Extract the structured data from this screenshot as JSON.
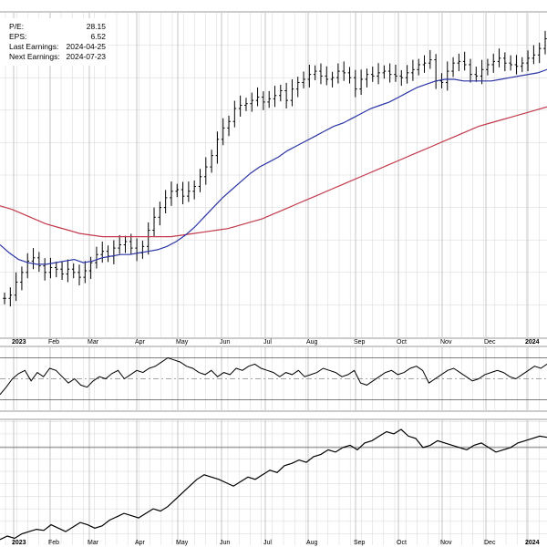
{
  "fundamentals": {
    "pe_label": "P/E:",
    "pe_value": "28.15",
    "eps_label": "EPS:",
    "eps_value": "6.52",
    "last_earnings_label": "Last Earnings:",
    "last_earnings_value": "2024-04-25",
    "next_earnings_label": "Next Earnings:",
    "next_earnings_value": "2024-07-23"
  },
  "colors": {
    "price_bars": "#000000",
    "ma_short": "#2b35a5",
    "ma_long": "#c23a4c",
    "indicator_line": "#000000",
    "indicator_fill": "#4f8a4f",
    "grid": "#d6d6d6",
    "band_line": "#555555",
    "midline": "#888888"
  },
  "chart_data": [
    {
      "type": "ohlc",
      "x_labels": [
        "2023",
        "Feb",
        "Mar",
        "Apr",
        "May",
        "Jun",
        "Jul",
        "Aug",
        "Sep",
        "Oct",
        "Nov",
        "Dec",
        "2024"
      ],
      "series": [
        {
          "key": "price",
          "values": [
            12.0,
            13.0,
            17.0,
            20.0,
            23.5,
            24.5,
            22.0,
            20.0,
            21.5,
            21.0,
            19.5,
            21.0,
            20.0,
            18.5,
            20.5,
            23.0,
            25.5,
            26.5,
            25.0,
            27.5,
            28.5,
            29.5,
            27.5,
            26.0,
            28.0,
            33.0,
            37.0,
            40.0,
            43.0,
            45.0,
            45.5,
            43.5,
            45.0,
            46.5,
            49.5,
            52.5,
            56.0,
            61.0,
            64.5,
            66.5,
            70.5,
            71.5,
            72.0,
            73.0,
            74.0,
            72.5,
            73.5,
            74.5,
            76.0,
            73.0,
            76.5,
            78.5,
            79.5,
            81.0,
            82.0,
            80.5,
            79.5,
            80.0,
            82.0,
            81.5,
            80.0,
            76.5,
            79.5,
            81.0,
            80.5,
            81.5,
            82.0,
            81.0,
            80.5,
            80.0,
            81.5,
            82.5,
            84.0,
            84.5,
            85.5,
            79.0,
            78.5,
            82.0,
            84.5,
            85.0,
            84.0,
            81.0,
            80.5,
            82.5,
            84.0,
            85.0,
            86.0,
            84.5,
            84.0,
            83.5,
            84.5,
            86.0,
            87.0,
            89.0,
            92.0
          ]
        },
        {
          "key": "ma_short",
          "values": [
            28.5,
            26.0,
            24.0,
            23.0,
            22.5,
            22.5,
            23.0,
            23.5,
            24.0,
            23.0,
            23.5,
            24.5,
            25.0,
            25.5,
            25.5,
            26.0,
            26.5,
            27.0,
            28.0,
            29.5,
            31.5,
            34.0,
            37.0,
            40.0,
            43.0,
            45.5,
            48.0,
            50.5,
            52.5,
            54.0,
            55.5,
            57.5,
            59.0,
            60.5,
            62.0,
            63.5,
            65.0,
            66.0,
            67.5,
            69.0,
            70.5,
            71.5,
            72.5,
            74.0,
            75.5,
            77.0,
            78.0,
            79.0,
            79.5,
            79.5,
            79.0,
            79.0,
            79.0,
            79.0,
            79.5,
            80.0,
            80.5,
            81.0,
            81.5,
            82.5
          ]
        },
        {
          "key": "ma_long",
          "values": [
            40.5,
            39.5,
            38.0,
            36.5,
            35.0,
            34.0,
            33.0,
            32.0,
            31.5,
            31.0,
            31.0,
            31.0,
            31.0,
            31.0,
            31.0,
            31.0,
            31.5,
            32.0,
            32.5,
            33.0,
            33.5,
            34.5,
            35.5,
            36.5,
            38.0,
            39.5,
            41.0,
            42.5,
            44.0,
            45.5,
            47.0,
            48.5,
            50.0,
            51.5,
            53.0,
            54.5,
            56.0,
            57.5,
            59.0,
            60.5,
            62.0,
            63.5,
            65.0,
            66.0,
            67.0,
            68.0,
            69.0,
            70.0,
            71.0
          ]
        }
      ]
    },
    {
      "type": "line",
      "series": [
        {
          "key": "oscillator",
          "values": [
            35,
            42,
            50,
            55,
            58,
            48,
            56,
            52,
            60,
            58,
            52,
            46,
            50,
            44,
            42,
            48,
            52,
            50,
            55,
            58,
            50,
            54,
            58,
            56,
            60,
            62,
            66,
            70,
            68,
            66,
            62,
            60,
            56,
            54,
            58,
            52,
            56,
            54,
            60,
            58,
            62,
            64,
            60,
            58,
            56,
            52,
            56,
            54,
            58,
            52,
            54,
            56,
            60,
            58,
            56,
            52,
            54,
            58,
            46,
            44,
            48,
            52,
            56,
            58,
            54,
            56,
            60,
            62,
            58,
            46,
            50,
            54,
            58,
            60,
            56,
            52,
            48,
            50,
            54,
            56,
            58,
            56,
            52,
            50,
            54,
            58,
            62,
            60,
            64
          ]
        }
      ],
      "overbought": 70,
      "midline": 50,
      "oversold": 30
    },
    {
      "type": "line",
      "series": [
        {
          "key": "cumulative",
          "values": [
            5,
            8,
            6,
            10,
            12,
            14,
            13,
            18,
            15,
            12,
            16,
            20,
            18,
            15,
            17,
            22,
            25,
            28,
            26,
            24,
            28,
            32,
            30,
            34,
            40,
            46,
            52,
            58,
            62,
            60,
            58,
            55,
            52,
            56,
            60,
            58,
            62,
            66,
            64,
            70,
            72,
            75,
            73,
            78,
            80,
            84,
            82,
            86,
            88,
            84,
            90,
            92,
            96,
            100,
            98,
            102,
            96,
            94,
            86,
            88,
            92,
            90,
            88,
            86,
            84,
            88,
            90,
            86,
            82,
            84,
            86,
            90,
            92,
            94,
            96,
            95
          ]
        }
      ]
    }
  ]
}
